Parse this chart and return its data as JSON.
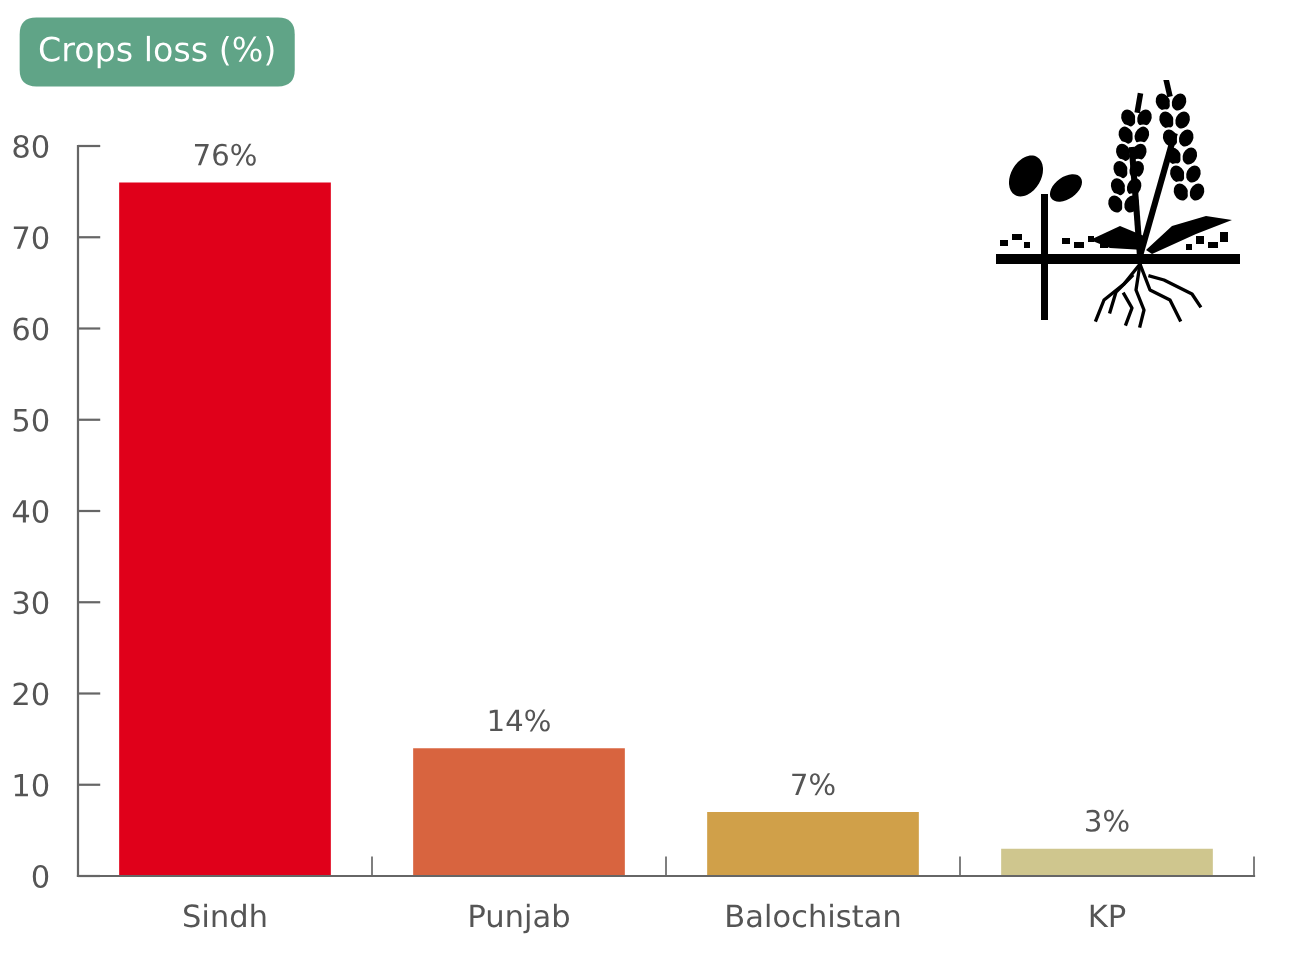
{
  "chart_data": {
    "type": "bar",
    "title": "Crops loss (%)",
    "categories": [
      "Sindh",
      "Punjab",
      "Balochistan",
      "KP"
    ],
    "values": [
      76,
      14,
      7,
      3
    ],
    "colors": [
      "#e0001a",
      "#d8643f",
      "#d0a049",
      "#cfc68e"
    ],
    "value_labels": [
      "76%",
      "14%",
      "7%",
      "3%"
    ],
    "ylim": [
      0,
      80
    ],
    "yticks": [
      0,
      10,
      20,
      30,
      40,
      50,
      60,
      70,
      80
    ]
  }
}
